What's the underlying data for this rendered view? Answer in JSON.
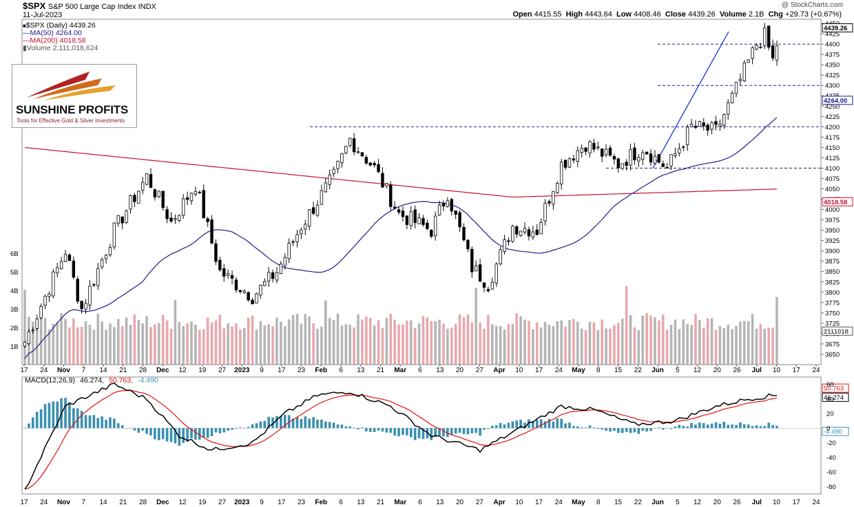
{
  "header": {
    "symbol": "$SPX",
    "name": "S&P 500 Large Cap Index",
    "exchange": "INDX",
    "date": "11-Jul-2023",
    "credit": "@ StockCharts.com",
    "ohlc": {
      "open_label": "Open",
      "open": "4415.55",
      "high_label": "High",
      "high": "4443.64",
      "low_label": "Low",
      "low": "4408.46",
      "close_label": "Close",
      "close": "4439.26",
      "volume_label": "Volume",
      "volume": "2.1B",
      "chg_label": "Chg",
      "chg": "+29.73 (+0.67%)"
    }
  },
  "legend": {
    "price": "$SPX (Daily) 4439.26",
    "ma50": "MA(50) 4264.00",
    "ma200": "MA(200) 4018.58",
    "volume": "Volume 2,111,018,624",
    "macd_name": "MACD(12,26,9)",
    "macd_value": "46.274,",
    "macd_signal": "50.763,",
    "macd_hist": "-4.490"
  },
  "logo": {
    "name": "SUNSHINE PROFITS",
    "tagline": "Tools for Effective Gold & Silver Investments"
  },
  "colors": {
    "up": "#ffffff",
    "down": "#000000",
    "ma50": "#1c1c8c",
    "ma200": "#c8102e",
    "vol_up": "#b5b5b5",
    "vol_down": "#e8a8ae",
    "macd": "#000000",
    "signal": "#e01010",
    "hist": "#3a8fb0",
    "dashed": "#1c1c8c",
    "trend": "#2040d0"
  },
  "chart_data": {
    "type": "candlestick",
    "x_labels": [
      "17",
      "24",
      "Nov",
      "7",
      "14",
      "21",
      "28",
      "Dec",
      "12",
      "19",
      "27",
      "2023",
      "9",
      "17",
      "23",
      "Feb",
      "6",
      "13",
      "21",
      "Mar",
      "6",
      "13",
      "20",
      "27",
      "Apr",
      "10",
      "17",
      "24",
      "May",
      "8",
      "15",
      "22",
      "Jun",
      "5",
      "12",
      "20",
      "26",
      "Jul",
      "10",
      "17",
      "24"
    ],
    "price_axis": {
      "min": 3625,
      "max": 4460,
      "ticks": [
        3650,
        3675,
        3700,
        3725,
        3750,
        3775,
        3800,
        3825,
        3850,
        3875,
        3900,
        3925,
        3950,
        3975,
        4000,
        4025,
        4050,
        4075,
        4100,
        4125,
        4150,
        4175,
        4200,
        4225,
        4250,
        4275,
        4300,
        4325,
        4350,
        4375,
        4400,
        4425,
        4450
      ]
    },
    "price_labels": {
      "close": "4439.26",
      "ma50": "4264.00",
      "ma200": "4018.58",
      "volume": "2111018"
    },
    "volume_axis": {
      "unit": "B",
      "ticks": [
        "1B",
        "2B",
        "3B",
        "4B",
        "5B",
        "6B"
      ]
    },
    "macd_axis": {
      "min": -90,
      "max": 70,
      "ticks": [
        -80,
        -60,
        -40,
        -20,
        0,
        20,
        40,
        60
      ]
    },
    "macd_labels": {
      "macd": "46.274",
      "signal": "50.763",
      "hist": "-4.490"
    },
    "horizontal_levels": [
      4100,
      4200,
      4300,
      4400
    ],
    "macd_current": {
      "macd": 46.274,
      "signal": 50.763,
      "histogram": -4.49
    },
    "ma50_last": 4264.0,
    "ma200_last": 4018.58,
    "close_last": 4439.26
  }
}
